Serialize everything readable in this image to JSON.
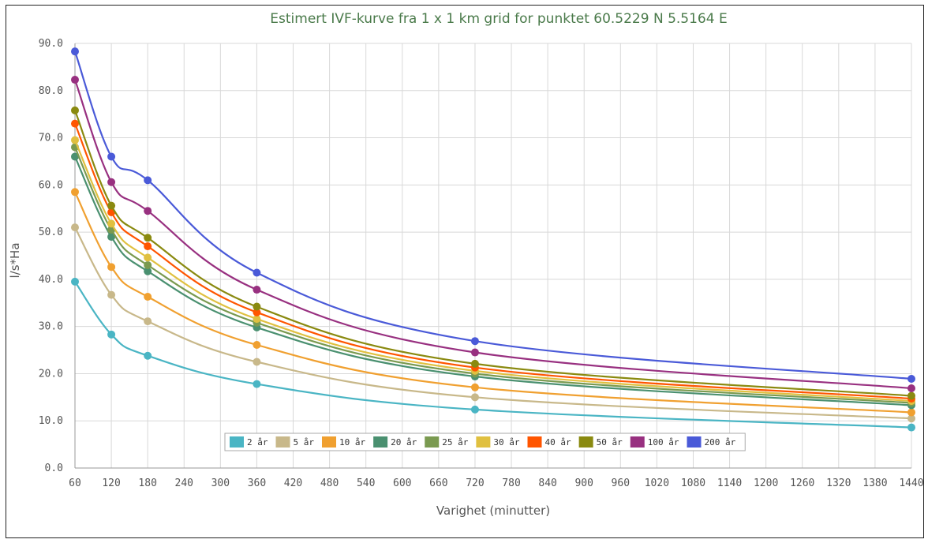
{
  "chart_data": {
    "type": "line",
    "title": "Estimert IVF-kurve fra 1 x 1 km grid for punktet 60.5229 N 5.5164 E",
    "xlabel": "Varighet (minutter)",
    "ylabel": "l/s*Ha",
    "xlim": [
      60,
      1440
    ],
    "ylim": [
      0,
      90
    ],
    "x_ticks": [
      "60",
      "120",
      "180",
      "240",
      "300",
      "360",
      "420",
      "480",
      "540",
      "600",
      "660",
      "720",
      "780",
      "840",
      "900",
      "960",
      "1020",
      "1080",
      "1140",
      "1200",
      "1260",
      "1320",
      "1380",
      "1440"
    ],
    "y_ticks": [
      "0.0",
      "10.0",
      "20.0",
      "30.0",
      "40.0",
      "50.0",
      "60.0",
      "70.0",
      "80.0",
      "90.0"
    ],
    "grid": true,
    "legend_position": "bottom-center",
    "x": [
      60,
      120,
      180,
      360,
      720,
      1440
    ],
    "series": [
      {
        "name": "2 år",
        "color": "#4ab5c4",
        "values": [
          39.5,
          28.3,
          23.8,
          17.8,
          12.4,
          8.6
        ]
      },
      {
        "name": "5 år",
        "color": "#c8b88a",
        "values": [
          51.0,
          36.7,
          31.1,
          22.5,
          15.0,
          10.5
        ]
      },
      {
        "name": "10 år",
        "color": "#f0a030",
        "values": [
          58.5,
          42.6,
          36.3,
          26.1,
          17.1,
          11.8
        ]
      },
      {
        "name": "20 år",
        "color": "#4a9070",
        "values": [
          66.0,
          49.0,
          41.7,
          29.8,
          19.4,
          13.3
        ]
      },
      {
        "name": "25 år",
        "color": "#7a9a50",
        "values": [
          68.0,
          50.5,
          43.0,
          30.8,
          20.0,
          13.8
        ]
      },
      {
        "name": "30 år",
        "color": "#e0c040",
        "values": [
          69.5,
          51.8,
          44.6,
          31.6,
          20.6,
          14.2
        ]
      },
      {
        "name": "40 år",
        "color": "#ff5500",
        "values": [
          73.0,
          54.2,
          47.0,
          33.0,
          21.3,
          14.7
        ]
      },
      {
        "name": "50 år",
        "color": "#8a8a10",
        "values": [
          75.8,
          55.6,
          48.8,
          34.2,
          22.1,
          15.3
        ]
      },
      {
        "name": "100 år",
        "color": "#983080",
        "values": [
          82.3,
          60.6,
          54.5,
          37.8,
          24.5,
          16.9
        ]
      },
      {
        "name": "200 år",
        "color": "#4a5ad8",
        "values": [
          88.3,
          66.0,
          61.0,
          41.4,
          26.9,
          18.9
        ]
      }
    ]
  }
}
